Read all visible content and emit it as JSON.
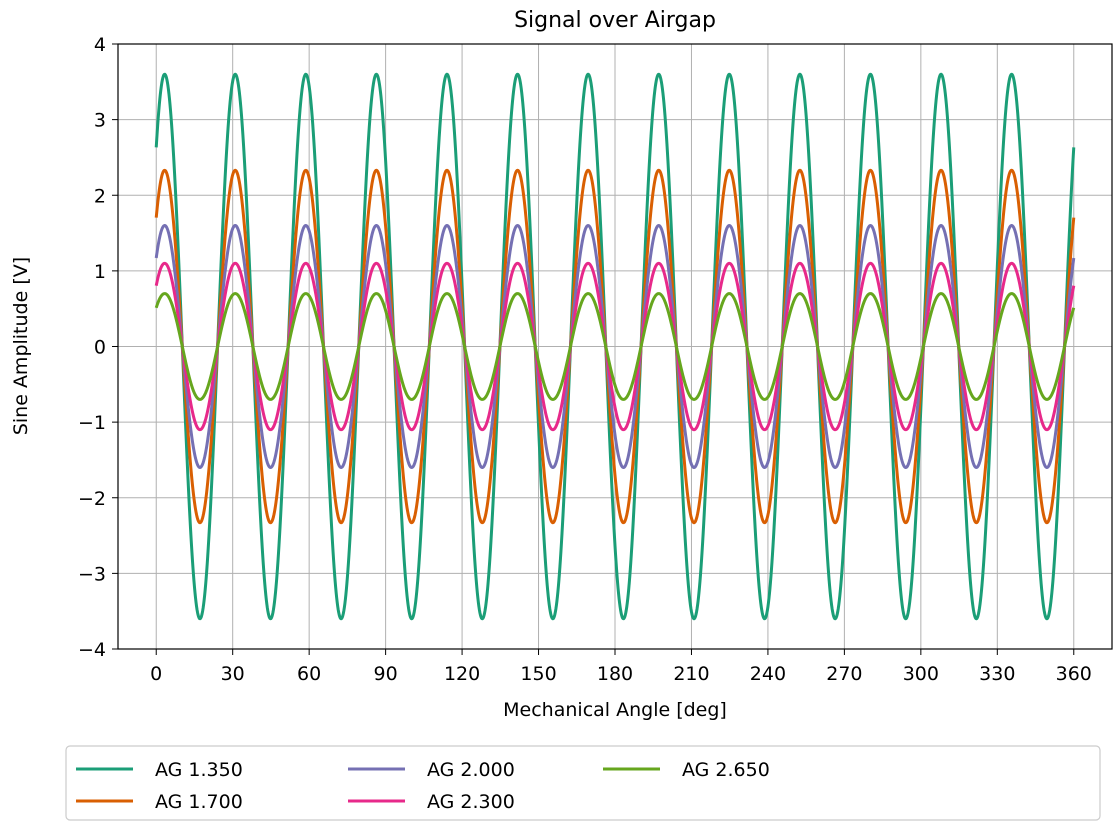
{
  "chart_data": {
    "type": "line",
    "title": "Signal over Airgap",
    "xlabel": "Mechanical Angle [deg]",
    "ylabel": "Sine Amplitude [V]",
    "xlim": [
      -15,
      375
    ],
    "ylim": [
      -4,
      4
    ],
    "xticks": [
      0,
      30,
      60,
      90,
      120,
      150,
      180,
      210,
      240,
      270,
      300,
      330,
      360
    ],
    "xtick_labels": [
      "0",
      "30",
      "60",
      "90",
      "120",
      "150",
      "180",
      "210",
      "240",
      "270",
      "300",
      "330",
      "360"
    ],
    "yticks": [
      4,
      3,
      2,
      1,
      0,
      -1,
      -2,
      -3,
      -4
    ],
    "ytick_labels": [
      "4",
      "3",
      "2",
      "1",
      "0",
      "−1",
      "−2",
      "−3",
      "−4"
    ],
    "grid": true,
    "legend_position": "below",
    "waveform": "sine",
    "cycles": 13,
    "phase_deg": 47,
    "series": [
      {
        "name": "AG 1.350",
        "amplitude": 3.6,
        "color": "#1b9e77"
      },
      {
        "name": "AG 1.700",
        "amplitude": 2.33,
        "color": "#d95f02"
      },
      {
        "name": "AG 2.000",
        "amplitude": 1.6,
        "color": "#7570b3"
      },
      {
        "name": "AG 2.300",
        "amplitude": 1.1,
        "color": "#e7298a"
      },
      {
        "name": "AG 2.650",
        "amplitude": 0.7,
        "color": "#66a61e"
      }
    ]
  }
}
